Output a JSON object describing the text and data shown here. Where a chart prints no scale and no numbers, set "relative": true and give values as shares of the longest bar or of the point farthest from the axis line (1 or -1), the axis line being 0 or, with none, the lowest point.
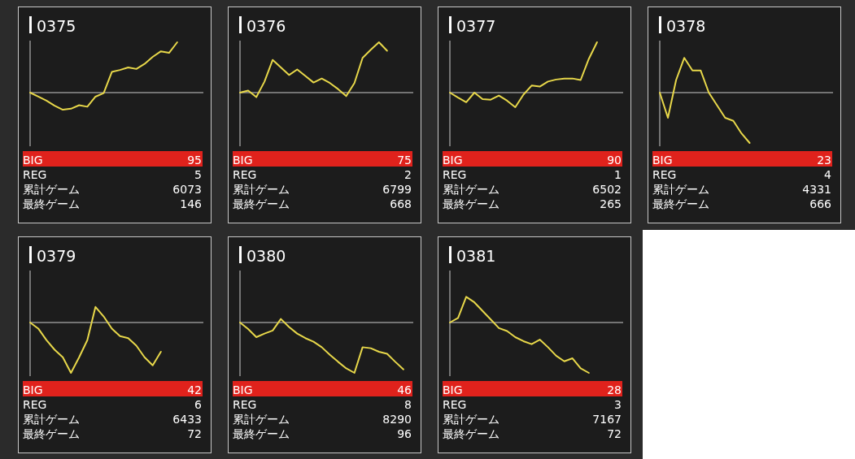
{
  "chart_data": [
    {
      "type": "line",
      "title": "0375",
      "relative": true,
      "color": "#e8d84a",
      "categories": [
        null,
        null,
        null,
        null,
        null,
        null,
        null,
        null,
        null,
        null,
        null,
        null,
        null,
        null,
        null,
        null,
        null,
        null,
        null,
        null,
        null,
        null
      ],
      "values": [
        0,
        -0.08,
        -0.16,
        -0.26,
        -0.34,
        -0.32,
        -0.25,
        -0.28,
        -0.08,
        -0.01,
        0.41,
        0.45,
        0.5,
        0.47,
        0.57,
        0.71,
        0.82,
        0.79,
        1.0,
        null,
        null,
        null
      ],
      "annotations": [
        "BIG",
        "95",
        "REG",
        "5",
        "累計ゲーム",
        "6073",
        "最終ゲーム",
        "146"
      ]
    },
    {
      "type": "line",
      "title": "0376",
      "relative": true,
      "color": "#e8d84a",
      "categories": [
        null,
        null,
        null,
        null,
        null,
        null,
        null,
        null,
        null,
        null,
        null,
        null,
        null,
        null,
        null,
        null,
        null,
        null,
        null,
        null,
        null,
        null
      ],
      "values": [
        0,
        0.04,
        -0.09,
        0.22,
        0.65,
        0.5,
        0.35,
        0.46,
        0.33,
        0.2,
        0.28,
        0.19,
        0.07,
        -0.07,
        0.19,
        0.69,
        0.85,
        1.0,
        0.83,
        null,
        null,
        null
      ],
      "annotations": [
        "BIG",
        "75",
        "REG",
        "2",
        "累計ゲーム",
        "6799",
        "最終ゲーム",
        "668"
      ]
    },
    {
      "type": "line",
      "title": "0377",
      "relative": true,
      "color": "#e8d84a",
      "categories": [
        null,
        null,
        null,
        null,
        null,
        null,
        null,
        null,
        null,
        null,
        null,
        null,
        null,
        null,
        null,
        null,
        null,
        null,
        null,
        null,
        null,
        null
      ],
      "values": [
        0,
        -0.1,
        -0.19,
        0,
        -0.13,
        -0.14,
        -0.06,
        -0.16,
        -0.29,
        -0.04,
        0.14,
        0.12,
        0.22,
        0.26,
        0.28,
        0.28,
        0.25,
        0.67,
        1.0,
        null,
        null,
        null
      ],
      "annotations": [
        "BIG",
        "90",
        "REG",
        "1",
        "累計ゲーム",
        "6502",
        "最終ゲーム",
        "265"
      ]
    },
    {
      "type": "line",
      "title": "0378",
      "relative": true,
      "color": "#e8d84a",
      "categories": [
        null,
        null,
        null,
        null,
        null,
        null,
        null,
        null,
        null,
        null,
        null,
        null,
        null,
        null,
        null,
        null,
        null,
        null,
        null,
        null,
        null,
        null
      ],
      "values": [
        0,
        -0.5,
        0.25,
        0.69,
        0.44,
        0.44,
        0,
        -0.25,
        -0.5,
        -0.56,
        -0.81,
        -1.0,
        null,
        null,
        null,
        null,
        null,
        null,
        null,
        null,
        null,
        null
      ],
      "annotations": [
        "BIG",
        "23",
        "REG",
        "4",
        "累計ゲーム",
        "4331",
        "最終ゲーム",
        "666"
      ]
    },
    {
      "type": "line",
      "title": "0379",
      "relative": true,
      "color": "#e8d84a",
      "categories": [
        null,
        null,
        null,
        null,
        null,
        null,
        null,
        null,
        null,
        null,
        null,
        null,
        null,
        null,
        null,
        null,
        null,
        null,
        null,
        null,
        null,
        null
      ],
      "values": [
        0,
        -0.12,
        -0.35,
        -0.54,
        -0.69,
        -1.0,
        -0.69,
        -0.35,
        0.31,
        0.12,
        -0.12,
        -0.27,
        -0.31,
        -0.46,
        -0.69,
        -0.85,
        -0.58,
        null,
        null,
        null,
        null,
        null
      ],
      "annotations": [
        "BIG",
        "42",
        "REG",
        "6",
        "累計ゲーム",
        "6433",
        "最終ゲーム",
        "72"
      ]
    },
    {
      "type": "line",
      "title": "0380",
      "relative": true,
      "color": "#e8d84a",
      "categories": [
        null,
        null,
        null,
        null,
        null,
        null,
        null,
        null,
        null,
        null,
        null,
        null,
        null,
        null,
        null,
        null,
        null,
        null,
        null,
        null,
        null,
        null
      ],
      "values": [
        0,
        -0.13,
        -0.29,
        -0.22,
        -0.16,
        0.07,
        -0.09,
        -0.22,
        -0.31,
        -0.38,
        -0.49,
        -0.64,
        -0.78,
        -0.91,
        -1.0,
        -0.49,
        -0.51,
        -0.58,
        -0.62,
        -0.78,
        -0.93,
        null
      ],
      "annotations": [
        "BIG",
        "46",
        "REG",
        "8",
        "累計ゲーム",
        "8290",
        "最終ゲーム",
        "96"
      ]
    },
    {
      "type": "line",
      "title": "0381",
      "relative": true,
      "color": "#e8d84a",
      "categories": [
        null,
        null,
        null,
        null,
        null,
        null,
        null,
        null,
        null,
        null,
        null,
        null,
        null,
        null,
        null,
        null,
        null,
        null,
        null,
        null,
        null,
        null
      ],
      "values": [
        0,
        0.09,
        0.51,
        0.4,
        0.23,
        0.06,
        -0.11,
        -0.17,
        -0.29,
        -0.37,
        -0.43,
        -0.34,
        -0.49,
        -0.66,
        -0.77,
        -0.71,
        -0.91,
        -1.0,
        null,
        null,
        null,
        null
      ],
      "annotations": [
        "BIG",
        "28",
        "REG",
        "3",
        "累計ゲーム",
        "7167",
        "最終ゲーム",
        "72"
      ]
    }
  ]
}
